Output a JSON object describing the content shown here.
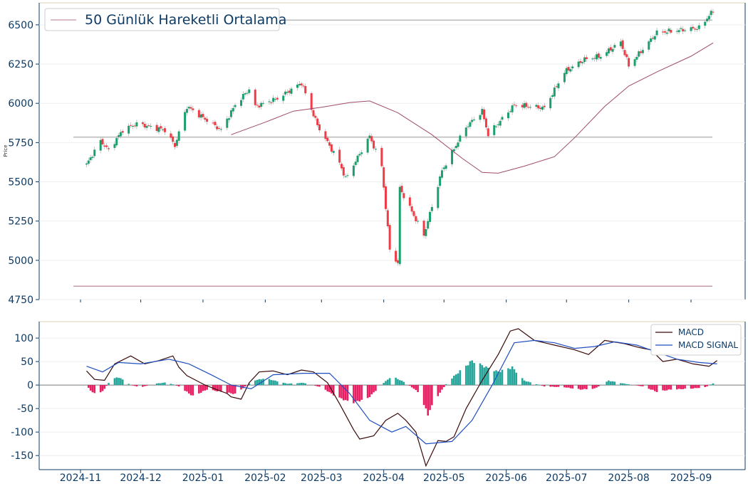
{
  "chart_data": [
    {
      "type": "candlestick",
      "title": "",
      "ylabel": "Price",
      "ylim": [
        4750,
        6640
      ],
      "yticks": [
        4750,
        5000,
        5250,
        5500,
        5750,
        6000,
        6250,
        6500
      ],
      "grid": "horizontal",
      "legend": {
        "placement": "top-left",
        "entries": [
          "50 Günlük Hareketli Ortalama"
        ]
      },
      "colors": {
        "up": "#1aa06d",
        "down": "#f03c46",
        "ma": "#a04a6e",
        "hline": "#bdbdbd",
        "hline_low": "#c79aa8",
        "axis": "#0d3b66",
        "top_border": "#d9d3b0"
      },
      "horizontal_lines": [
        6530,
        5785,
        4835
      ],
      "close_anchors": [
        [
          "2024-11-04",
          5610
        ],
        [
          "2024-11-11",
          5760
        ],
        [
          "2024-11-15",
          5700
        ],
        [
          "2024-11-22",
          5830
        ],
        [
          "2024-11-29",
          5870
        ],
        [
          "2024-12-06",
          5850
        ],
        [
          "2024-12-13",
          5830
        ],
        [
          "2024-12-18",
          5730
        ],
        [
          "2024-12-24",
          5980
        ],
        [
          "2025-01-02",
          5900
        ],
        [
          "2025-01-10",
          5830
        ],
        [
          "2025-01-17",
          5990
        ],
        [
          "2025-01-24",
          6090
        ],
        [
          "2025-01-27",
          5980
        ],
        [
          "2025-02-07",
          6030
        ],
        [
          "2025-02-19",
          6130
        ],
        [
          "2025-02-27",
          5860
        ],
        [
          "2025-03-10",
          5620
        ],
        [
          "2025-03-13",
          5520
        ],
        [
          "2025-03-25",
          5790
        ],
        [
          "2025-03-31",
          5600
        ],
        [
          "2025-04-04",
          5070
        ],
        [
          "2025-04-08",
          4980
        ],
        [
          "2025-04-09",
          5460
        ],
        [
          "2025-04-21",
          5160
        ],
        [
          "2025-04-30",
          5570
        ],
        [
          "2025-05-12",
          5850
        ],
        [
          "2025-05-20",
          5950
        ],
        [
          "2025-05-23",
          5800
        ],
        [
          "2025-06-05",
          5990
        ],
        [
          "2025-06-13",
          5980
        ],
        [
          "2025-06-20",
          5970
        ],
        [
          "2025-06-30",
          6200
        ],
        [
          "2025-07-10",
          6280
        ],
        [
          "2025-07-18",
          6300
        ],
        [
          "2025-07-28",
          6390
        ],
        [
          "2025-08-01",
          6240
        ],
        [
          "2025-08-15",
          6450
        ],
        [
          "2025-08-22",
          6460
        ],
        [
          "2025-09-05",
          6480
        ],
        [
          "2025-09-12",
          6590
        ]
      ],
      "ma50_anchors": [
        [
          "2025-01-15",
          5800
        ],
        [
          "2025-02-01",
          5880
        ],
        [
          "2025-02-15",
          5950
        ],
        [
          "2025-03-01",
          5975
        ],
        [
          "2025-03-15",
          6005
        ],
        [
          "2025-03-25",
          6015
        ],
        [
          "2025-04-08",
          5940
        ],
        [
          "2025-04-25",
          5800
        ],
        [
          "2025-05-10",
          5650
        ],
        [
          "2025-05-20",
          5560
        ],
        [
          "2025-05-28",
          5555
        ],
        [
          "2025-06-10",
          5600
        ],
        [
          "2025-06-25",
          5660
        ],
        [
          "2025-07-05",
          5780
        ],
        [
          "2025-07-20",
          5980
        ],
        [
          "2025-08-01",
          6110
        ],
        [
          "2025-08-15",
          6200
        ],
        [
          "2025-09-01",
          6300
        ],
        [
          "2025-09-12",
          6385
        ]
      ]
    },
    {
      "type": "line+bar",
      "ylim": [
        -180,
        135
      ],
      "yticks": [
        -150,
        -100,
        -50,
        0,
        50,
        100
      ],
      "xlabels": [
        "2024-11",
        "2024-12",
        "2025-01",
        "2025-02",
        "2025-03",
        "2025-04",
        "2025-05",
        "2025-06",
        "2025-07",
        "2025-08",
        "2025-09"
      ],
      "legend": {
        "placement": "top-right",
        "entries": [
          "MACD",
          "MACD SIGNAL"
        ]
      },
      "series": [
        {
          "name": "MACD",
          "color": "#3a0a0a",
          "points": [
            [
              "2024-11-04",
              30
            ],
            [
              "2024-11-08",
              12
            ],
            [
              "2024-11-13",
              10
            ],
            [
              "2024-11-18",
              45
            ],
            [
              "2024-11-26",
              62
            ],
            [
              "2024-12-03",
              45
            ],
            [
              "2024-12-10",
              52
            ],
            [
              "2024-12-17",
              62
            ],
            [
              "2024-12-20",
              38
            ],
            [
              "2024-12-24",
              20
            ],
            [
              "2025-01-02",
              0
            ],
            [
              "2025-01-08",
              -10
            ],
            [
              "2025-01-13",
              -18
            ],
            [
              "2025-01-15",
              -25
            ],
            [
              "2025-01-20",
              -30
            ],
            [
              "2025-01-24",
              5
            ],
            [
              "2025-01-29",
              28
            ],
            [
              "2025-02-05",
              30
            ],
            [
              "2025-02-12",
              22
            ],
            [
              "2025-02-19",
              32
            ],
            [
              "2025-02-25",
              28
            ],
            [
              "2025-03-04",
              5
            ],
            [
              "2025-03-10",
              -40
            ],
            [
              "2025-03-17",
              -95
            ],
            [
              "2025-03-20",
              -115
            ],
            [
              "2025-03-27",
              -108
            ],
            [
              "2025-04-02",
              -75
            ],
            [
              "2025-04-08",
              -60
            ],
            [
              "2025-04-12",
              -75
            ],
            [
              "2025-04-17",
              -100
            ],
            [
              "2025-04-22",
              -172
            ],
            [
              "2025-04-28",
              -118
            ],
            [
              "2025-05-02",
              -120
            ],
            [
              "2025-05-06",
              -110
            ],
            [
              "2025-05-12",
              -50
            ],
            [
              "2025-05-20",
              10
            ],
            [
              "2025-05-28",
              65
            ],
            [
              "2025-06-03",
              115
            ],
            [
              "2025-06-07",
              120
            ],
            [
              "2025-06-15",
              95
            ],
            [
              "2025-06-25",
              85
            ],
            [
              "2025-07-05",
              75
            ],
            [
              "2025-07-12",
              65
            ],
            [
              "2025-07-20",
              95
            ],
            [
              "2025-07-30",
              88
            ],
            [
              "2025-08-06",
              80
            ],
            [
              "2025-08-12",
              75
            ],
            [
              "2025-08-18",
              50
            ],
            [
              "2025-08-25",
              55
            ],
            [
              "2025-09-02",
              45
            ],
            [
              "2025-09-10",
              40
            ],
            [
              "2025-09-14",
              52
            ]
          ]
        },
        {
          "name": "MACD SIGNAL",
          "color": "#1f4fbf",
          "points": [
            [
              "2024-11-04",
              40
            ],
            [
              "2024-11-12",
              28
            ],
            [
              "2024-11-20",
              48
            ],
            [
              "2024-12-01",
              45
            ],
            [
              "2024-12-15",
              55
            ],
            [
              "2024-12-25",
              45
            ],
            [
              "2025-01-05",
              22
            ],
            [
              "2025-01-15",
              0
            ],
            [
              "2025-01-25",
              -8
            ],
            [
              "2025-02-05",
              22
            ],
            [
              "2025-02-20",
              25
            ],
            [
              "2025-03-05",
              25
            ],
            [
              "2025-03-15",
              -18
            ],
            [
              "2025-03-25",
              -75
            ],
            [
              "2025-04-05",
              -100
            ],
            [
              "2025-04-12",
              -88
            ],
            [
              "2025-04-22",
              -125
            ],
            [
              "2025-05-05",
              -120
            ],
            [
              "2025-05-15",
              -75
            ],
            [
              "2025-05-25",
              0
            ],
            [
              "2025-06-05",
              90
            ],
            [
              "2025-06-15",
              95
            ],
            [
              "2025-06-25",
              90
            ],
            [
              "2025-07-05",
              78
            ],
            [
              "2025-07-15",
              82
            ],
            [
              "2025-07-25",
              92
            ],
            [
              "2025-08-05",
              85
            ],
            [
              "2025-08-15",
              70
            ],
            [
              "2025-08-25",
              55
            ],
            [
              "2025-09-05",
              48
            ],
            [
              "2025-09-14",
              45
            ]
          ]
        }
      ],
      "histogram_anchors": [
        [
          "2024-11-04",
          0
        ],
        [
          "2024-11-07",
          -18
        ],
        [
          "2024-11-12",
          -15
        ],
        [
          "2024-11-16",
          12
        ],
        [
          "2024-11-20",
          18
        ],
        [
          "2024-11-26",
          0
        ],
        [
          "2024-12-01",
          -5
        ],
        [
          "2024-12-08",
          3
        ],
        [
          "2024-12-14",
          6
        ],
        [
          "2024-12-20",
          -3
        ],
        [
          "2024-12-27",
          -25
        ],
        [
          "2025-01-03",
          -10
        ],
        [
          "2025-01-10",
          -15
        ],
        [
          "2025-01-17",
          -20
        ],
        [
          "2025-01-26",
          10
        ],
        [
          "2025-02-01",
          15
        ],
        [
          "2025-02-12",
          3
        ],
        [
          "2025-02-20",
          5
        ],
        [
          "2025-03-01",
          -5
        ],
        [
          "2025-03-08",
          -25
        ],
        [
          "2025-03-16",
          -40
        ],
        [
          "2025-03-24",
          -30
        ],
        [
          "2025-04-01",
          5
        ],
        [
          "2025-04-05",
          20
        ],
        [
          "2025-04-12",
          5
        ],
        [
          "2025-04-18",
          -15
        ],
        [
          "2025-04-23",
          -65
        ],
        [
          "2025-04-27",
          -30
        ],
        [
          "2025-05-02",
          2
        ],
        [
          "2025-05-06",
          20
        ],
        [
          "2025-05-15",
          55
        ],
        [
          "2025-05-22",
          40
        ],
        [
          "2025-05-28",
          30
        ],
        [
          "2025-06-04",
          40
        ],
        [
          "2025-06-10",
          10
        ],
        [
          "2025-06-20",
          -3
        ],
        [
          "2025-06-30",
          -5
        ],
        [
          "2025-07-08",
          -10
        ],
        [
          "2025-07-15",
          -8
        ],
        [
          "2025-07-22",
          10
        ],
        [
          "2025-07-30",
          3
        ],
        [
          "2025-08-08",
          -3
        ],
        [
          "2025-08-15",
          -15
        ],
        [
          "2025-08-22",
          -10
        ],
        [
          "2025-09-01",
          -8
        ],
        [
          "2025-09-08",
          -5
        ],
        [
          "2025-09-14",
          8
        ]
      ],
      "histogram_colors": {
        "positive": "#26a69a",
        "negative": "#e91e63"
      }
    }
  ]
}
